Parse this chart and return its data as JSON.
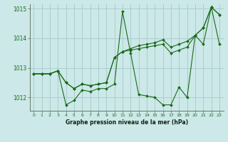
{
  "title": "Graphe pression niveau de la mer (hPa)",
  "background_color": "#cce8e8",
  "grid_color": "#aacece",
  "line_color": "#1a6b1a",
  "xlim": [
    -0.5,
    23.5
  ],
  "ylim": [
    1011.55,
    1015.15
  ],
  "yticks": [
    1012,
    1013,
    1014,
    1015
  ],
  "xticks": [
    0,
    1,
    2,
    3,
    4,
    5,
    6,
    7,
    8,
    9,
    10,
    11,
    12,
    13,
    14,
    15,
    16,
    17,
    18,
    19,
    20,
    21,
    22,
    23
  ],
  "series": [
    [
      1012.8,
      1012.8,
      1012.8,
      1012.9,
      1011.75,
      1011.9,
      1012.25,
      1012.2,
      1012.3,
      1012.3,
      1012.45,
      1014.9,
      1013.5,
      1012.1,
      1012.05,
      1012.0,
      1011.75,
      1011.75,
      1012.35,
      1012.0,
      1014.1,
      1013.8,
      1015.05,
      1013.8
    ],
    [
      1012.8,
      1012.8,
      1012.8,
      1012.9,
      1012.5,
      1012.3,
      1012.45,
      1012.4,
      1012.45,
      1012.5,
      1013.35,
      1013.55,
      1013.6,
      1013.65,
      1013.7,
      1013.75,
      1013.8,
      1013.5,
      1013.6,
      1013.7,
      1014.1,
      1014.35,
      1015.05,
      1014.8
    ],
    [
      1012.8,
      1012.8,
      1012.8,
      1012.9,
      1012.5,
      1012.3,
      1012.45,
      1012.4,
      1012.45,
      1012.5,
      1013.35,
      1013.55,
      1013.65,
      1013.75,
      1013.8,
      1013.85,
      1013.95,
      1013.7,
      1013.8,
      1013.9,
      1014.1,
      1014.35,
      1015.05,
      1014.8
    ]
  ]
}
